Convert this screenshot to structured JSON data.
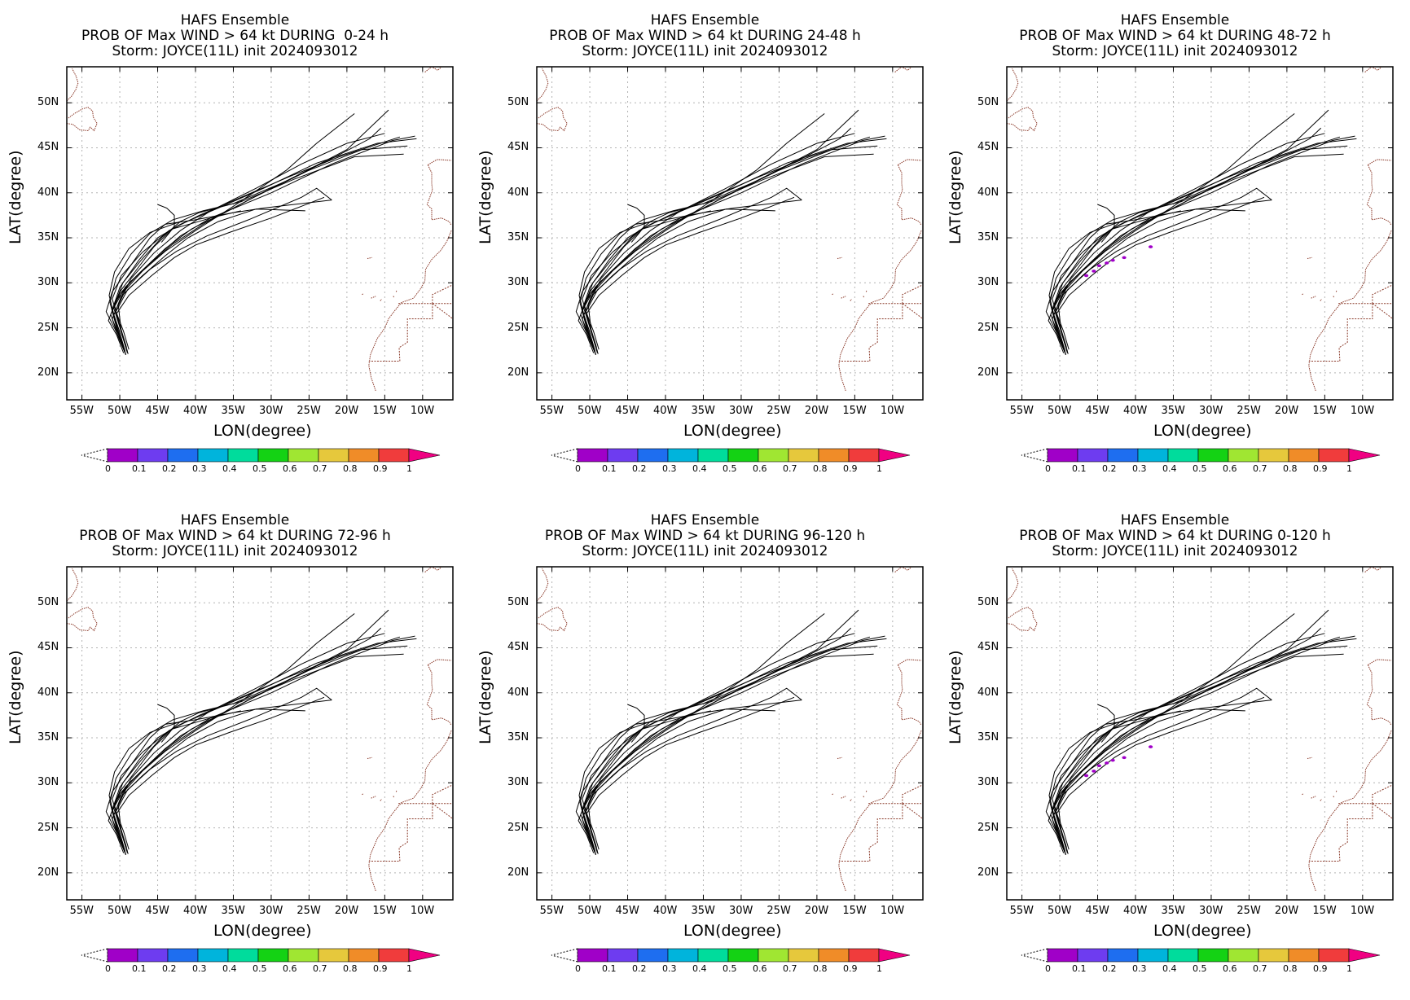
{
  "panels": [
    {
      "line1": "HAFS Ensemble",
      "line2": "PROB OF Max WIND > 64 kt DURING  0-24 h",
      "line3": "Storm: JOYCE(11L) init 2024093012",
      "prob_cells": []
    },
    {
      "line1": "HAFS Ensemble",
      "line2": "PROB OF Max WIND > 64 kt DURING 24-48 h",
      "line3": "Storm: JOYCE(11L) init 2024093012",
      "prob_cells": []
    },
    {
      "line1": "HAFS Ensemble",
      "line2": "PROB OF Max WIND > 64 kt DURING 48-72 h",
      "line3": "Storm: JOYCE(11L) init 2024093012",
      "prob_cells": [
        [
          -46.5,
          30.8
        ],
        [
          -45.5,
          31.3
        ],
        [
          -44.8,
          31.9
        ],
        [
          -43.8,
          32.2
        ],
        [
          -43.0,
          32.5
        ],
        [
          -41.5,
          32.8
        ],
        [
          -38.0,
          34.0
        ]
      ]
    },
    {
      "line1": "HAFS Ensemble",
      "line2": "PROB OF Max WIND > 64 kt DURING 72-96 h",
      "line3": "Storm: JOYCE(11L) init 2024093012",
      "prob_cells": []
    },
    {
      "line1": "HAFS Ensemble",
      "line2": "PROB OF Max WIND > 64 kt DURING 96-120 h",
      "line3": "Storm: JOYCE(11L) init 2024093012",
      "prob_cells": []
    },
    {
      "line1": "HAFS Ensemble",
      "line2": "PROB OF Max WIND > 64 kt DURING 0-120 h",
      "line3": "Storm: JOYCE(11L) init 2024093012",
      "prob_cells": [
        [
          -46.5,
          30.8
        ],
        [
          -45.5,
          31.3
        ],
        [
          -44.8,
          31.9
        ],
        [
          -43.8,
          32.2
        ],
        [
          -43.0,
          32.5
        ],
        [
          -41.5,
          32.8
        ],
        [
          -38.0,
          34.0
        ]
      ]
    }
  ],
  "axes": {
    "xlabel": "LON(degree)",
    "ylabel": "LAT(degree)",
    "lon_range": [
      -57,
      -6
    ],
    "lat_range": [
      17,
      54
    ],
    "x_ticks": [
      -55,
      -50,
      -45,
      -40,
      -35,
      -30,
      -25,
      -20,
      -15,
      -10
    ],
    "x_tick_labels": [
      "55W",
      "50W",
      "45W",
      "40W",
      "35W",
      "30W",
      "25W",
      "20W",
      "15W",
      "10W"
    ],
    "y_ticks": [
      20,
      25,
      30,
      35,
      40,
      45,
      50
    ],
    "y_tick_labels": [
      "20N",
      "25N",
      "30N",
      "35N",
      "40N",
      "45N",
      "50N"
    ],
    "grid": true
  },
  "colorbar": {
    "labels": [
      "0",
      "0.1",
      "0.2",
      "0.3",
      "0.4",
      "0.5",
      "0.6",
      "0.7",
      "0.8",
      "0.9",
      "1"
    ],
    "colors": [
      "#a000c8",
      "#6e3cf0",
      "#1e6ef0",
      "#00b4dc",
      "#00dc9c",
      "#14d214",
      "#a0e632",
      "#e6c83c",
      "#f08c28",
      "#f03c3c"
    ],
    "over_color": "#f00082"
  },
  "colors": {
    "track": "#000000",
    "coast": "#8b3a2a",
    "grid": "#b4b4b4",
    "prob": "#a000c8"
  },
  "tracks": [
    [
      [
        -49.2,
        22.0
      ],
      [
        -49.8,
        23.5
      ],
      [
        -51.0,
        26.0
      ],
      [
        -49.5,
        29.0
      ],
      [
        -47.0,
        31.3
      ],
      [
        -44.0,
        33.5
      ],
      [
        -40.0,
        35.8
      ],
      [
        -35.0,
        38.5
      ],
      [
        -28.0,
        42.5
      ],
      [
        -24.0,
        45.5
      ],
      [
        -19.0,
        48.8
      ]
    ],
    [
      [
        -49.2,
        22.0
      ],
      [
        -50.2,
        24.0
      ],
      [
        -51.2,
        26.5
      ],
      [
        -50.0,
        28.8
      ],
      [
        -47.5,
        31.0
      ],
      [
        -44.0,
        33.8
      ],
      [
        -40.5,
        36.0
      ],
      [
        -35.0,
        38.3
      ],
      [
        -30.0,
        40.5
      ],
      [
        -22.0,
        43.8
      ],
      [
        -17.0,
        46.0
      ],
      [
        -15.5,
        47.2
      ]
    ],
    [
      [
        -49.0,
        22.3
      ],
      [
        -49.6,
        24.0
      ],
      [
        -50.8,
        27.2
      ],
      [
        -49.3,
        29.5
      ],
      [
        -46.5,
        31.8
      ],
      [
        -43.0,
        34.3
      ],
      [
        -39.0,
        36.5
      ],
      [
        -33.0,
        39.2
      ],
      [
        -25.0,
        42.5
      ],
      [
        -18.0,
        44.8
      ],
      [
        -12.0,
        45.2
      ]
    ],
    [
      [
        -49.5,
        22.2
      ],
      [
        -50.4,
        24.2
      ],
      [
        -51.5,
        25.8
      ],
      [
        -50.5,
        28.0
      ],
      [
        -48.5,
        30.2
      ],
      [
        -45.0,
        33.0
      ],
      [
        -42.0,
        35.2
      ],
      [
        -38.0,
        37.2
      ],
      [
        -30.0,
        40.0
      ],
      [
        -22.0,
        43.2
      ],
      [
        -14.0,
        45.8
      ],
      [
        -11.0,
        46.3
      ]
    ],
    [
      [
        -48.8,
        22.6
      ],
      [
        -49.5,
        24.6
      ],
      [
        -50.5,
        26.8
      ],
      [
        -49.0,
        29.2
      ],
      [
        -46.0,
        31.5
      ],
      [
        -42.5,
        33.5
      ],
      [
        -38.5,
        35.2
      ],
      [
        -33.0,
        37.0
      ],
      [
        -26.0,
        39.5
      ],
      [
        -24.0,
        40.5
      ],
      [
        -22.0,
        39.2
      ]
    ],
    [
      [
        -49.3,
        22.3
      ],
      [
        -50.1,
        24.8
      ],
      [
        -50.8,
        26.4
      ],
      [
        -49.8,
        28.5
      ],
      [
        -47.0,
        30.8
      ],
      [
        -44.0,
        33.0
      ],
      [
        -41.0,
        35.0
      ],
      [
        -37.0,
        36.8
      ],
      [
        -32.0,
        38.2
      ],
      [
        -25.5,
        38.0
      ]
    ],
    [
      [
        -49.6,
        23.0
      ],
      [
        -50.6,
        24.8
      ],
      [
        -51.8,
        26.8
      ],
      [
        -51.0,
        29.0
      ],
      [
        -48.5,
        32.0
      ],
      [
        -46.0,
        35.0
      ],
      [
        -44.0,
        36.5
      ],
      [
        -40.0,
        37.0
      ],
      [
        -35.0,
        37.8
      ],
      [
        -31.0,
        38.3
      ],
      [
        -29.0,
        38.5
      ],
      [
        -22.0,
        39.2
      ]
    ],
    [
      [
        -49.2,
        22.0
      ],
      [
        -50.0,
        24.0
      ],
      [
        -51.0,
        27.0
      ],
      [
        -50.0,
        29.5
      ],
      [
        -47.5,
        32.5
      ],
      [
        -45.0,
        35.0
      ],
      [
        -42.0,
        36.5
      ],
      [
        -37.0,
        38.3
      ],
      [
        -31.0,
        40.5
      ],
      [
        -24.0,
        43.3
      ],
      [
        -16.0,
        45.5
      ],
      [
        -10.8,
        46.0
      ]
    ],
    [
      [
        -49.0,
        22.4
      ],
      [
        -49.8,
        24.5
      ],
      [
        -50.7,
        27.5
      ],
      [
        -49.6,
        30.0
      ],
      [
        -47.2,
        32.5
      ],
      [
        -44.5,
        35.0
      ],
      [
        -42.0,
        36.8
      ],
      [
        -39.5,
        37.8
      ],
      [
        -35.0,
        38.8
      ],
      [
        -28.0,
        41.3
      ],
      [
        -20.0,
        44.8
      ],
      [
        -14.5,
        49.2
      ]
    ],
    [
      [
        -49.4,
        22.5
      ],
      [
        -50.3,
        24.6
      ],
      [
        -51.3,
        27.8
      ],
      [
        -50.5,
        30.5
      ],
      [
        -48.5,
        33.2
      ],
      [
        -46.0,
        35.5
      ],
      [
        -43.0,
        37.0
      ],
      [
        -39.0,
        38.0
      ],
      [
        -34.0,
        39.0
      ],
      [
        -27.0,
        41.5
      ],
      [
        -19.0,
        44.0
      ],
      [
        -12.5,
        44.3
      ]
    ],
    [
      [
        -48.9,
        22.1
      ],
      [
        -49.7,
        24.2
      ],
      [
        -50.4,
        26.6
      ],
      [
        -48.8,
        28.6
      ],
      [
        -45.8,
        30.8
      ],
      [
        -42.8,
        32.8
      ],
      [
        -40.0,
        34.2
      ],
      [
        -35.5,
        35.6
      ],
      [
        -30.0,
        37.2
      ],
      [
        -26.0,
        38.5
      ],
      [
        -23.0,
        39.5
      ]
    ],
    [
      [
        -49.1,
        22.8
      ],
      [
        -50.0,
        25.3
      ],
      [
        -51.0,
        28.2
      ],
      [
        -49.8,
        30.8
      ],
      [
        -47.0,
        33.4
      ],
      [
        -43.5,
        35.8
      ],
      [
        -39.5,
        37.5
      ],
      [
        -34.0,
        39.5
      ],
      [
        -27.0,
        42.0
      ],
      [
        -21.0,
        44.0
      ],
      [
        -13.0,
        46.2
      ]
    ],
    [
      [
        -49.3,
        22.4
      ],
      [
        -50.2,
        25.0
      ],
      [
        -51.0,
        27.0
      ],
      [
        -50.0,
        29.0
      ],
      [
        -48.0,
        31.2
      ],
      [
        -45.5,
        34.0
      ],
      [
        -43.0,
        36.0
      ],
      [
        -40.0,
        36.7
      ],
      [
        -38.0,
        37.2
      ],
      [
        -34.0,
        38.0
      ]
    ],
    [
      [
        -49.0,
        22.2
      ],
      [
        -49.8,
        24.6
      ],
      [
        -50.2,
        27.5
      ],
      [
        -48.5,
        30.5
      ],
      [
        -45.5,
        33.3
      ],
      [
        -42.0,
        35.8
      ],
      [
        -38.0,
        38.0
      ],
      [
        -32.0,
        40.5
      ],
      [
        -26.0,
        43.2
      ],
      [
        -20.0,
        45.5
      ],
      [
        -15.0,
        46.6
      ]
    ],
    [
      [
        -49.5,
        22.6
      ],
      [
        -50.5,
        25.5
      ],
      [
        -51.4,
        28.6
      ],
      [
        -50.7,
        31.2
      ],
      [
        -48.8,
        33.8
      ],
      [
        -46.0,
        35.6
      ],
      [
        -44.0,
        36.2
      ],
      [
        -43.0,
        36.5
      ],
      [
        -42.0,
        36.8
      ]
    ],
    [
      [
        -44.5,
        34.5
      ],
      [
        -43.5,
        35.5
      ],
      [
        -42.8,
        36.3
      ],
      [
        -42.8,
        37.5
      ],
      [
        -43.8,
        38.3
      ],
      [
        -45.0,
        38.7
      ]
    ]
  ],
  "coastlines": [
    [
      [
        -57,
        50.2
      ],
      [
        -56.3,
        50.8
      ],
      [
        -55.8,
        51.5
      ],
      [
        -55.5,
        52.2
      ],
      [
        -55.8,
        53.0
      ],
      [
        -56.3,
        53.8
      ]
    ],
    [
      [
        -56.8,
        48.3
      ],
      [
        -56.0,
        48.8
      ],
      [
        -55.0,
        49.3
      ],
      [
        -54.2,
        49.5
      ],
      [
        -53.6,
        49.1
      ],
      [
        -53.5,
        48.4
      ],
      [
        -53.0,
        47.7
      ],
      [
        -53.4,
        46.9
      ],
      [
        -53.9,
        47.3
      ],
      [
        -54.2,
        46.9
      ],
      [
        -55.3,
        47.0
      ],
      [
        -56.2,
        47.6
      ],
      [
        -57,
        47.7
      ]
    ],
    [
      [
        -9.7,
        53.4
      ],
      [
        -8.8,
        54.0
      ],
      [
        -8.0,
        53.6
      ],
      [
        -7.5,
        54.0
      ]
    ],
    [
      [
        -9.3,
        43.1
      ],
      [
        -8.3,
        43.6
      ],
      [
        -8.0,
        43.7
      ],
      [
        -6.2,
        43.6
      ]
    ],
    [
      [
        -9.3,
        43.1
      ],
      [
        -8.8,
        42.2
      ],
      [
        -8.8,
        41.0
      ],
      [
        -8.7,
        40.3
      ],
      [
        -9.4,
        38.7
      ],
      [
        -8.8,
        38.2
      ],
      [
        -8.8,
        37.0
      ],
      [
        -7.5,
        37.2
      ],
      [
        -6.5,
        36.8
      ],
      [
        -6.2,
        36.4
      ]
    ],
    [
      [
        -6.2,
        35.8
      ],
      [
        -6.8,
        34.6
      ],
      [
        -7.6,
        33.6
      ],
      [
        -8.8,
        32.6
      ],
      [
        -9.6,
        31.5
      ],
      [
        -9.7,
        30.2
      ],
      [
        -10.3,
        29.3
      ],
      [
        -11.2,
        28.3
      ],
      [
        -12.8,
        27.8
      ],
      [
        -13.6,
        27.0
      ],
      [
        -14.5,
        26.0
      ],
      [
        -15.0,
        25.0
      ],
      [
        -16.0,
        23.8
      ],
      [
        -16.9,
        22.0
      ],
      [
        -17.1,
        20.8
      ],
      [
        -16.8,
        19.5
      ],
      [
        -16.2,
        18.0
      ]
    ],
    [
      [
        -17.3,
        32.7
      ],
      [
        -16.7,
        32.8
      ]
    ],
    [
      [
        -18.0,
        28.7
      ],
      [
        -17.8,
        28.8
      ]
    ],
    [
      [
        -16.8,
        28.3
      ],
      [
        -16.2,
        28.5
      ]
    ],
    [
      [
        -15.6,
        28.0
      ],
      [
        -15.4,
        28.2
      ]
    ],
    [
      [
        -13.8,
        28.4
      ],
      [
        -13.9,
        28.6
      ]
    ],
    [
      [
        -13.5,
        29.0
      ],
      [
        -13.4,
        29.2
      ]
    ]
  ],
  "borders": [
    [
      [
        -8.7,
        27.7
      ],
      [
        -8.7,
        26.0
      ],
      [
        -12.0,
        26.0
      ],
      [
        -12.0,
        23.4
      ],
      [
        -13.1,
        22.8
      ],
      [
        -13.0,
        21.3
      ],
      [
        -17.1,
        21.3
      ]
    ],
    [
      [
        -13.2,
        27.7
      ],
      [
        -8.7,
        27.7
      ],
      [
        -6,
        27.7
      ]
    ],
    [
      [
        -8.7,
        27.7
      ],
      [
        -6,
        26.0
      ]
    ],
    [
      [
        -6.2,
        29.7
      ],
      [
        -8.7,
        28.7
      ],
      [
        -8.7,
        27.7
      ]
    ]
  ]
}
